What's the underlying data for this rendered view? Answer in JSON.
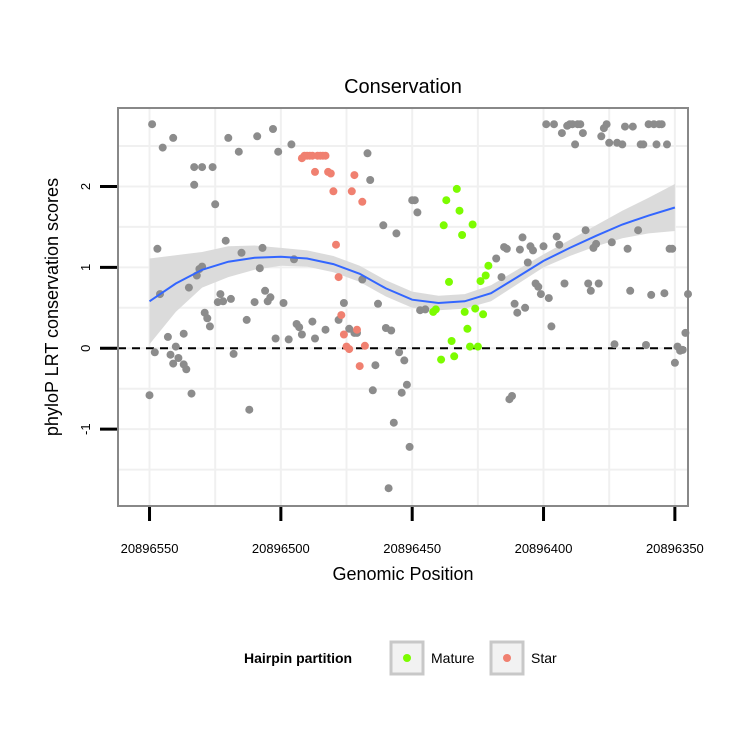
{
  "chart_data": {
    "type": "scatter",
    "title": "Conservation",
    "xlabel": "Genomic Position",
    "ylabel": "phyloP LRT conservation scores",
    "x_reversed": true,
    "xlim": [
      20896562,
      20896345
    ],
    "ylim": [
      -1.95,
      2.97
    ],
    "x_ticks": [
      20896550,
      20896500,
      20896450,
      20896400,
      20896350
    ],
    "x_tick_labels": [
      "20896550",
      "20896500",
      "20896450",
      "20896400",
      "20896350"
    ],
    "y_ticks": [
      -1,
      0,
      1,
      2
    ],
    "y_tick_labels": [
      "-1",
      "0",
      "1",
      "2"
    ],
    "grid": true,
    "reference_line": {
      "y": 0,
      "style": "dashed"
    },
    "legend": {
      "title": "Hairpin partition",
      "position": "bottom",
      "entries": [
        {
          "label": "Mature",
          "color": "#7CFC00"
        },
        {
          "label": "Star",
          "color": "#F08070"
        }
      ]
    },
    "colors": {
      "other": "#8C8C8C",
      "Mature": "#7CFC00",
      "Star": "#F08070",
      "smooth": "#3366FF",
      "band": "#D9D9D9",
      "panel_border": "#888888"
    },
    "series": [
      {
        "group": "other",
        "points": [
          [
            20896549,
            2.77
          ],
          [
            20896545,
            2.48
          ],
          [
            20896541,
            2.6
          ],
          [
            20896546,
            0.67
          ],
          [
            20896547,
            1.23
          ],
          [
            20896550,
            -0.58
          ],
          [
            20896548,
            -0.05
          ],
          [
            20896543,
            0.14
          ],
          [
            20896542,
            -0.08
          ],
          [
            20896541,
            -0.19
          ],
          [
            20896540,
            0.02
          ],
          [
            20896539,
            -0.12
          ],
          [
            20896537,
            -0.2
          ],
          [
            20896536,
            -0.26
          ],
          [
            20896537,
            0.18
          ],
          [
            20896535,
            0.75
          ],
          [
            20896534,
            -0.56
          ],
          [
            20896532,
            0.9
          ],
          [
            20896533,
            2.02
          ],
          [
            20896533,
            2.24
          ],
          [
            20896530,
            2.24
          ],
          [
            20896529,
            0.44
          ],
          [
            20896528,
            0.37
          ],
          [
            20896527,
            0.27
          ],
          [
            20896525,
            1.78
          ],
          [
            20896526,
            2.24
          ],
          [
            20896531,
            0.98
          ],
          [
            20896530,
            1.01
          ],
          [
            20896524,
            0.57
          ],
          [
            20896523,
            0.67
          ],
          [
            20896522,
            0.58
          ],
          [
            20896521,
            1.33
          ],
          [
            20896520,
            2.6
          ],
          [
            20896519,
            0.61
          ],
          [
            20896518,
            -0.07
          ],
          [
            20896516,
            2.43
          ],
          [
            20896515,
            1.18
          ],
          [
            20896513,
            0.35
          ],
          [
            20896512,
            -0.76
          ],
          [
            20896510,
            0.57
          ],
          [
            20896509,
            2.62
          ],
          [
            20896508,
            0.99
          ],
          [
            20896507,
            1.24
          ],
          [
            20896506,
            0.71
          ],
          [
            20896505,
            0.58
          ],
          [
            20896504,
            0.63
          ],
          [
            20896503,
            2.71
          ],
          [
            20896502,
            0.12
          ],
          [
            20896501,
            2.43
          ],
          [
            20896499,
            0.56
          ],
          [
            20896497,
            0.11
          ],
          [
            20896496,
            2.52
          ],
          [
            20896495,
            1.1
          ],
          [
            20896494,
            0.3
          ],
          [
            20896493,
            0.26
          ],
          [
            20896492,
            0.17
          ],
          [
            20896488,
            0.33
          ],
          [
            20896487,
            0.12
          ],
          [
            20896483,
            0.23
          ],
          [
            20896478,
            0.35
          ],
          [
            20896476,
            0.56
          ],
          [
            20896474,
            0.24
          ],
          [
            20896472,
            0.19
          ],
          [
            20896471,
            0.19
          ],
          [
            20896469,
            0.85
          ],
          [
            20896467,
            2.41
          ],
          [
            20896466,
            2.08
          ],
          [
            20896465,
            -0.52
          ],
          [
            20896464,
            -0.21
          ],
          [
            20896463,
            0.55
          ],
          [
            20896461,
            1.52
          ],
          [
            20896460,
            0.25
          ],
          [
            20896459,
            -1.73
          ],
          [
            20896458,
            0.22
          ],
          [
            20896457,
            -0.92
          ],
          [
            20896456,
            1.42
          ],
          [
            20896455,
            -0.05
          ],
          [
            20896454,
            -0.55
          ],
          [
            20896453,
            -0.15
          ],
          [
            20896452,
            -0.45
          ],
          [
            20896451,
            -1.22
          ],
          [
            20896450,
            1.83
          ],
          [
            20896449,
            1.83
          ],
          [
            20896448,
            1.68
          ],
          [
            20896447,
            0.47
          ],
          [
            20896445,
            0.48
          ],
          [
            20896418,
            1.11
          ],
          [
            20896416,
            0.88
          ],
          [
            20896415,
            1.25
          ],
          [
            20896414,
            1.23
          ],
          [
            20896413,
            -0.63
          ],
          [
            20896412,
            -0.59
          ],
          [
            20896411,
            0.55
          ],
          [
            20896410,
            0.44
          ],
          [
            20896409,
            1.22
          ],
          [
            20896408,
            1.37
          ],
          [
            20896407,
            0.5
          ],
          [
            20896406,
            1.06
          ],
          [
            20896405,
            1.26
          ],
          [
            20896404,
            1.21
          ],
          [
            20896403,
            0.8
          ],
          [
            20896402,
            0.76
          ],
          [
            20896401,
            0.67
          ],
          [
            20896400,
            1.26
          ],
          [
            20896399,
            2.77
          ],
          [
            20896398,
            0.62
          ],
          [
            20896397,
            0.27
          ],
          [
            20896396,
            2.77
          ],
          [
            20896395,
            1.38
          ],
          [
            20896394,
            1.28
          ],
          [
            20896393,
            2.66
          ],
          [
            20896392,
            0.8
          ],
          [
            20896391,
            2.75
          ],
          [
            20896390,
            2.77
          ],
          [
            20896389,
            2.77
          ],
          [
            20896388,
            2.52
          ],
          [
            20896387,
            2.77
          ],
          [
            20896386,
            2.77
          ],
          [
            20896385,
            2.66
          ],
          [
            20896384,
            1.46
          ],
          [
            20896383,
            0.8
          ],
          [
            20896382,
            0.71
          ],
          [
            20896381,
            1.24
          ],
          [
            20896380,
            1.29
          ],
          [
            20896379,
            0.8
          ],
          [
            20896378,
            2.62
          ],
          [
            20896377,
            2.72
          ],
          [
            20896376,
            2.77
          ],
          [
            20896375,
            2.54
          ],
          [
            20896374,
            1.31
          ],
          [
            20896373,
            0.05
          ],
          [
            20896372,
            2.54
          ],
          [
            20896370,
            2.52
          ],
          [
            20896369,
            2.74
          ],
          [
            20896368,
            1.23
          ],
          [
            20896367,
            0.71
          ],
          [
            20896366,
            2.74
          ],
          [
            20896364,
            1.46
          ],
          [
            20896363,
            2.52
          ],
          [
            20896362,
            2.52
          ],
          [
            20896361,
            0.04
          ],
          [
            20896360,
            2.77
          ],
          [
            20896359,
            0.66
          ],
          [
            20896358,
            2.77
          ],
          [
            20896357,
            2.52
          ],
          [
            20896356,
            2.77
          ],
          [
            20896355,
            2.77
          ],
          [
            20896354,
            0.68
          ],
          [
            20896353,
            2.52
          ],
          [
            20896352,
            1.23
          ],
          [
            20896351,
            1.23
          ],
          [
            20896350,
            -0.18
          ],
          [
            20896349,
            0.02
          ],
          [
            20896348,
            -0.03
          ],
          [
            20896347,
            -0.02
          ],
          [
            20896346,
            0.19
          ],
          [
            20896345,
            0.67
          ]
        ]
      },
      {
        "group": "Mature",
        "points": [
          [
            20896442,
            0.45
          ],
          [
            20896441,
            0.48
          ],
          [
            20896439,
            -0.14
          ],
          [
            20896438,
            1.52
          ],
          [
            20896437,
            1.83
          ],
          [
            20896436,
            0.82
          ],
          [
            20896435,
            0.09
          ],
          [
            20896434,
            -0.1
          ],
          [
            20896433,
            1.97
          ],
          [
            20896432,
            1.7
          ],
          [
            20896431,
            1.4
          ],
          [
            20896430,
            0.45
          ],
          [
            20896429,
            0.24
          ],
          [
            20896428,
            0.02
          ],
          [
            20896427,
            1.53
          ],
          [
            20896426,
            0.49
          ],
          [
            20896425,
            0.02
          ],
          [
            20896424,
            0.83
          ],
          [
            20896423,
            0.42
          ],
          [
            20896422,
            0.9
          ],
          [
            20896421,
            1.02
          ]
        ]
      },
      {
        "group": "Star",
        "points": [
          [
            20896492,
            2.35
          ],
          [
            20896491,
            2.38
          ],
          [
            20896490,
            2.38
          ],
          [
            20896489,
            2.38
          ],
          [
            20896488,
            2.38
          ],
          [
            20896487,
            2.18
          ],
          [
            20896486,
            2.38
          ],
          [
            20896485,
            2.38
          ],
          [
            20896484,
            2.38
          ],
          [
            20896483,
            2.38
          ],
          [
            20896482,
            2.18
          ],
          [
            20896481,
            2.16
          ],
          [
            20896480,
            1.94
          ],
          [
            20896479,
            1.28
          ],
          [
            20896478,
            0.88
          ],
          [
            20896477,
            0.41
          ],
          [
            20896476,
            0.17
          ],
          [
            20896475,
            0.02
          ],
          [
            20896474,
            -0.01
          ],
          [
            20896473,
            1.94
          ],
          [
            20896472,
            2.14
          ],
          [
            20896471,
            0.23
          ],
          [
            20896470,
            -0.22
          ],
          [
            20896469,
            1.81
          ],
          [
            20896468,
            0.03
          ]
        ]
      }
    ],
    "smooth": {
      "x": [
        20896550,
        20896540,
        20896530,
        20896520,
        20896510,
        20896500,
        20896490,
        20896480,
        20896470,
        20896460,
        20896450,
        20896440,
        20896430,
        20896420,
        20896410,
        20896400,
        20896390,
        20896380,
        20896370,
        20896360,
        20896350
      ],
      "y": [
        0.58,
        0.8,
        0.97,
        1.07,
        1.12,
        1.13,
        1.11,
        1.04,
        0.92,
        0.74,
        0.6,
        0.56,
        0.58,
        0.68,
        0.88,
        1.08,
        1.24,
        1.39,
        1.53,
        1.64,
        1.74
      ],
      "lower": [
        0.05,
        0.45,
        0.75,
        0.88,
        0.97,
        1.02,
        1.01,
        0.94,
        0.82,
        0.64,
        0.5,
        0.47,
        0.49,
        0.58,
        0.79,
        1.0,
        1.14,
        1.26,
        1.36,
        1.42,
        1.45
      ],
      "upper": [
        1.11,
        1.15,
        1.19,
        1.26,
        1.27,
        1.24,
        1.21,
        1.14,
        1.02,
        0.84,
        0.7,
        0.65,
        0.67,
        0.78,
        0.97,
        1.16,
        1.34,
        1.52,
        1.7,
        1.86,
        2.03
      ]
    }
  }
}
